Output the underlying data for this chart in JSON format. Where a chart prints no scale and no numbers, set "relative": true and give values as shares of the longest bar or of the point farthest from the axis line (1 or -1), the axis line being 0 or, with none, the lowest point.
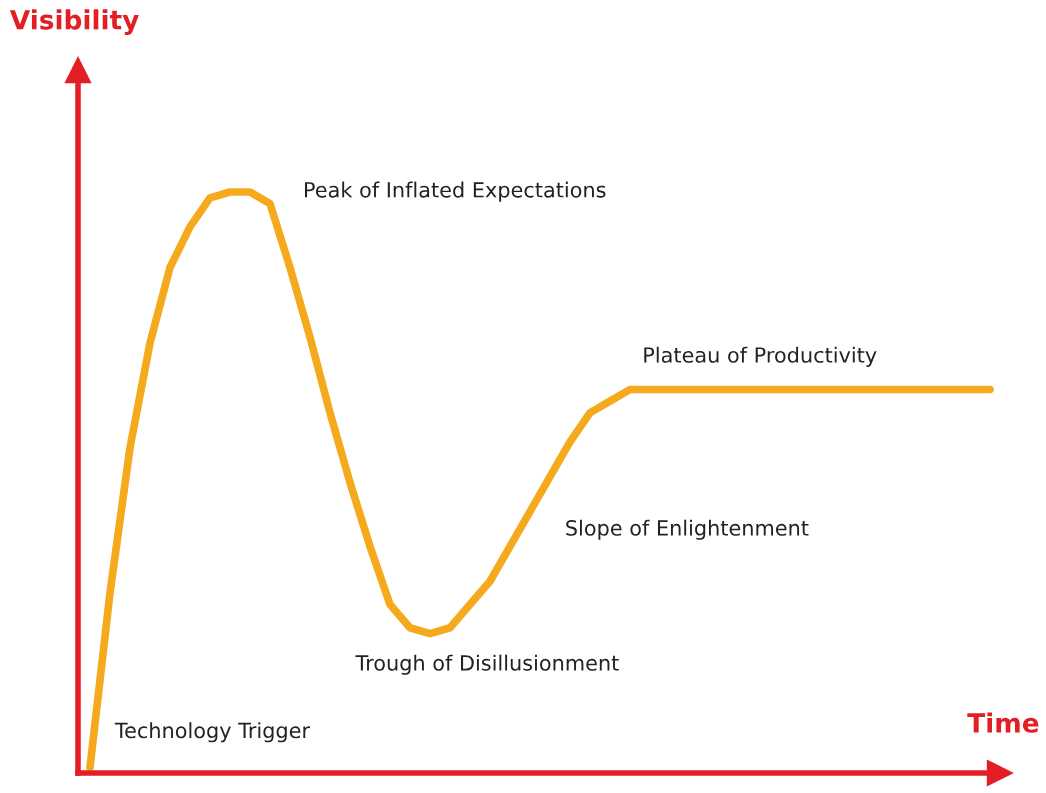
{
  "chart_data": {
    "type": "line",
    "relative": true,
    "xlabel": "Time",
    "categories": [
      null,
      null,
      null,
      null,
      null,
      null,
      null,
      null,
      null,
      null,
      null,
      null,
      null,
      null,
      null,
      null,
      null,
      null,
      null,
      null,
      null,
      null,
      null,
      null,
      null,
      null,
      null,
      null,
      null,
      null,
      null,
      null,
      null,
      null,
      null,
      null,
      null,
      null,
      null,
      null,
      null,
      null,
      null,
      null,
      null,
      null
    ],
    "series": [
      {
        "color": "#f5a91c",
        "values": [
          0.01,
          0.31,
          0.56,
          0.74,
          0.87,
          0.94,
          0.99,
          1.0,
          1.0,
          0.98,
          0.87,
          0.75,
          0.62,
          0.5,
          0.39,
          0.29,
          0.25,
          0.24,
          0.25,
          0.29,
          0.33,
          0.39,
          0.45,
          0.51,
          0.57,
          0.62,
          0.64,
          0.66,
          0.66,
          0.66,
          0.66,
          0.66,
          0.66,
          0.66,
          0.66,
          0.66,
          0.66,
          0.66,
          0.66,
          0.66,
          0.66,
          0.66,
          0.66,
          0.66,
          0.66,
          0.66
        ]
      }
    ],
    "annotations": [
      "Technology Trigger",
      "Peak of Inflated Expectations",
      "Trough of Disillusionment",
      "Slope of Enlightenment",
      "Plateau of Productivity",
      "Visibility"
    ],
    "grid": false,
    "marker": "none",
    "line_style": "solid"
  }
}
